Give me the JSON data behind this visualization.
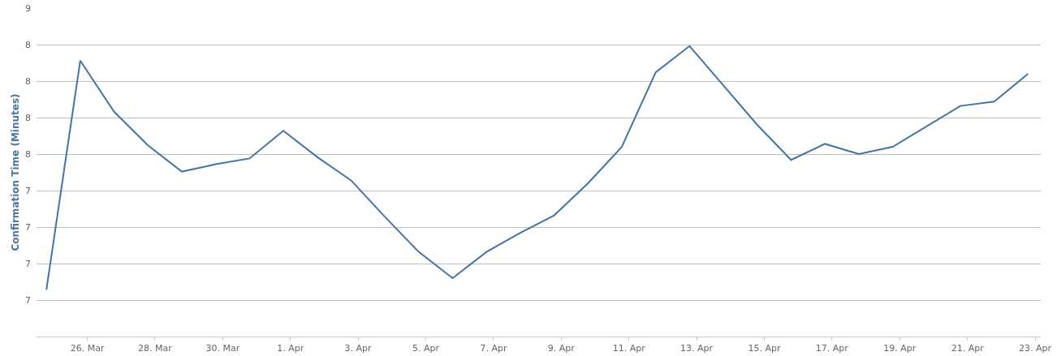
{
  "chart_data": {
    "type": "line",
    "ylabel": "Confirmation Time (Minutes)",
    "x": [
      "--03-24T19:00",
      "--03-25T19:00",
      "--03-26T19:00",
      "--03-27T19:00",
      "--03-28T19:00",
      "--03-29T19:00",
      "--03-30T19:00",
      "--03-31T19:00",
      "--04-01T19:00",
      "--04-02T19:00",
      "--04-03T19:00",
      "--04-04T19:00",
      "--04-05T19:00",
      "--04-06T19:00",
      "--04-07T19:00",
      "--04-08T19:00",
      "--04-09T19:00",
      "--04-10T19:00",
      "--04-11T19:00",
      "--04-12T19:00",
      "--04-13T19:00",
      "--04-14T19:00",
      "--04-15T19:00",
      "--04-16T19:00",
      "--04-17T19:00",
      "--04-18T19:00",
      "--04-19T19:00",
      "--04-20T19:00",
      "--04-21T19:00",
      "--04-22T19:00"
    ],
    "series": [
      {
        "color": "#4572a7",
        "values": [
          6.57,
          8.14,
          7.79,
          7.56,
          7.38,
          7.43,
          7.47,
          7.66,
          7.48,
          7.32,
          7.07,
          6.83,
          6.65,
          6.83,
          6.96,
          7.08,
          7.3,
          7.55,
          8.06,
          8.24,
          7.97,
          7.7,
          7.46,
          7.57,
          7.5,
          7.55,
          7.69,
          7.83,
          7.86,
          8.05
        ]
      }
    ],
    "xlim": [
      "--03-24T12:00",
      "--04-23T04:00"
    ],
    "xticks": [
      {
        "value": "--03-26",
        "label": "26. Mar"
      },
      {
        "value": "--03-28",
        "label": "28. Mar"
      },
      {
        "value": "--03-30",
        "label": "30. Mar"
      },
      {
        "value": "--04-01",
        "label": "1. Apr"
      },
      {
        "value": "--04-03",
        "label": "3. Apr"
      },
      {
        "value": "--04-05",
        "label": "5. Apr"
      },
      {
        "value": "--04-07",
        "label": "7. Apr"
      },
      {
        "value": "--04-09",
        "label": "9. Apr"
      },
      {
        "value": "--04-11",
        "label": "11. Apr"
      },
      {
        "value": "--04-13",
        "label": "13. Apr"
      },
      {
        "value": "--04-15",
        "label": "15. Apr"
      },
      {
        "value": "--04-17",
        "label": "17. Apr"
      },
      {
        "value": "--04-19",
        "label": "19. Apr"
      },
      {
        "value": "--04-21",
        "label": "21. Apr"
      },
      {
        "value": "--04-23",
        "label": "23. Apr"
      }
    ],
    "ylim": [
      6.25,
      8.5
    ],
    "yticks": [
      {
        "value": 8.5,
        "label": "9"
      },
      {
        "value": 8.25,
        "label": "8"
      },
      {
        "value": 8.0,
        "label": "8"
      },
      {
        "value": 7.75,
        "label": "8"
      },
      {
        "value": 7.5,
        "label": "8"
      },
      {
        "value": 7.25,
        "label": "7"
      },
      {
        "value": 7.0,
        "label": "7"
      },
      {
        "value": 6.75,
        "label": "7"
      },
      {
        "value": 6.5,
        "label": "7"
      }
    ],
    "grid": "y",
    "marker": "none",
    "line_style": "solid"
  }
}
